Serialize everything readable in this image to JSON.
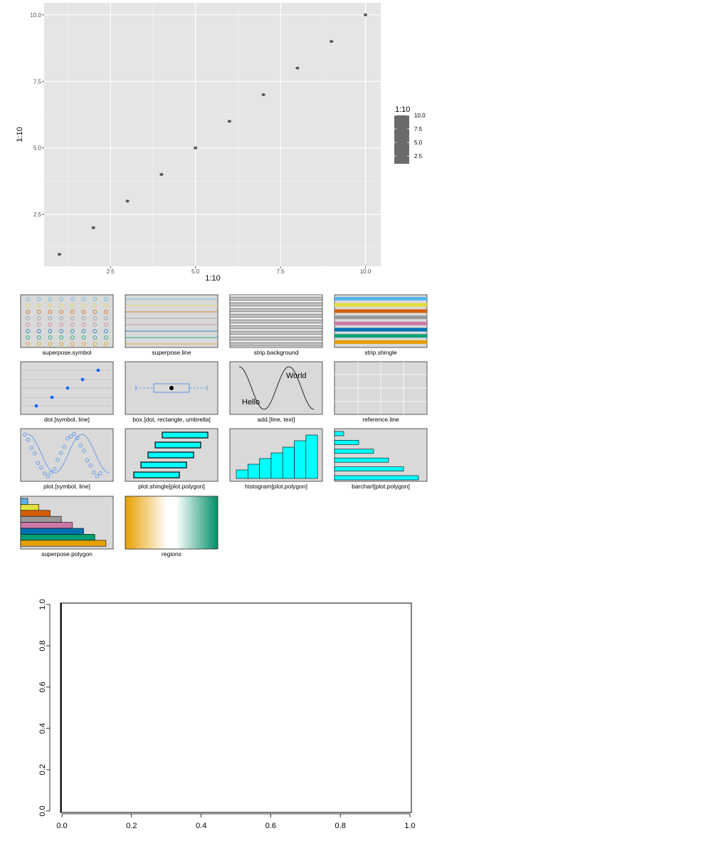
{
  "chart_data": [
    {
      "type": "scatter",
      "x": [
        1,
        2,
        3,
        4,
        5,
        6,
        7,
        8,
        9,
        10
      ],
      "y": [
        1,
        2,
        3,
        4,
        5,
        6,
        7,
        8,
        9,
        10
      ],
      "xlabel": "1:10",
      "ylabel": "1:10",
      "xlim": [
        0.55,
        10.45
      ],
      "ylim": [
        0.55,
        10.45
      ],
      "x_ticks": [
        "2.5",
        "5.0",
        "7.5",
        "10.0"
      ],
      "y_ticks": [
        "2.5",
        "5.0",
        "7.5",
        "10.0"
      ],
      "x_tick_values": [
        2.5,
        5.0,
        7.5,
        10.0
      ],
      "y_tick_values": [
        2.5,
        5.0,
        7.5,
        10.0
      ],
      "grid": true,
      "point_color": "#595959",
      "panel_background": "#e5e5e5",
      "legend": {
        "title": "1:10",
        "labels": [
          "10.0",
          "7.5",
          "5.0",
          "2.5"
        ],
        "placement": "right",
        "color": "#6b6b6b"
      }
    },
    {
      "type": "other",
      "panels": [
        "superpose.symbol",
        "superpose.line",
        "strip.background",
        "strip.shingle",
        "dot.[symbol, line]",
        "box.[dot, rectangle, umbrella]",
        "add.[line, text]",
        "reference.line",
        "plot.[symbol, line]",
        "plot.shingle[plot.polygon]",
        "histogram[plot.polygon]",
        "barchart[plot.polygon]",
        "superpose.polygon",
        "regions"
      ],
      "text_hello": "Hello",
      "text_world": "World",
      "superpose_colors": [
        "#56b4e9",
        "#e2de3c",
        "#d55e00",
        "#999999",
        "#cc79a7",
        "#0072b2",
        "#009e73",
        "#e69f00"
      ],
      "plot_color": "#4f8ee8",
      "dot_color": "#0f62fe",
      "polygon_fill": "#00ffff",
      "strip_background": "#c0c0c0",
      "regions_colors": [
        "#e69f00",
        "#ffffff",
        "#008f68"
      ]
    },
    {
      "type": "line",
      "x": [],
      "y": [],
      "xlim": [
        0,
        1
      ],
      "ylim": [
        0,
        1
      ],
      "x_ticks": [
        "0.0",
        "0.2",
        "0.4",
        "0.6",
        "0.8",
        "1.0"
      ],
      "y_ticks": [
        "0.0",
        "0.2",
        "0.4",
        "0.6",
        "0.8",
        "1.0"
      ],
      "x_tick_values": [
        0,
        0.2,
        0.4,
        0.6,
        0.8,
        1.0
      ],
      "y_tick_values": [
        0,
        0.2,
        0.4,
        0.6,
        0.8,
        1.0
      ],
      "grid": false
    }
  ]
}
